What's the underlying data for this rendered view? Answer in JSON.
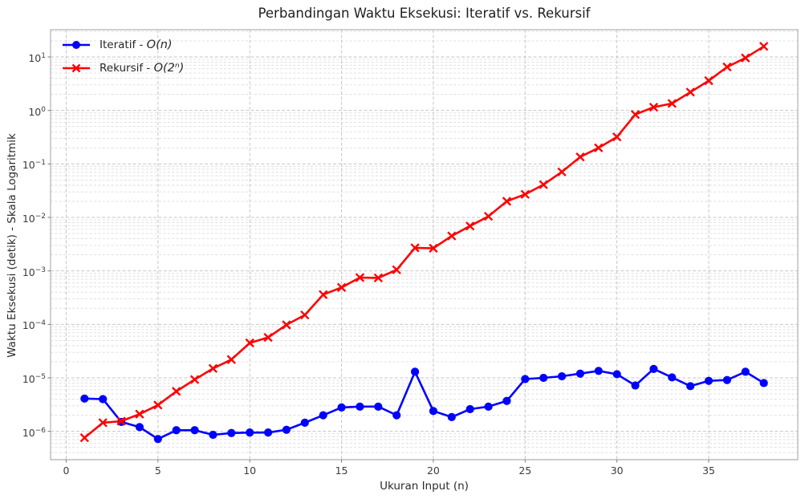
{
  "chart_data": {
    "type": "line",
    "title": "Perbandingan Waktu Eksekusi: Iteratif vs. Rekursif",
    "xlabel": "Ukuran Input (n)",
    "ylabel": "Waktu Eksekusi (detik) - Skala Logaritmik",
    "y_scale": "log",
    "grid": "major+minor, dashed, both axes",
    "legend_position": "upper-left, frameless",
    "x": [
      1,
      2,
      3,
      4,
      5,
      6,
      7,
      8,
      9,
      10,
      11,
      12,
      13,
      14,
      15,
      16,
      17,
      18,
      19,
      20,
      21,
      22,
      23,
      24,
      25,
      26,
      27,
      28,
      29,
      30,
      31,
      32,
      33,
      34,
      35,
      36,
      37,
      38
    ],
    "series": [
      {
        "label_prefix": "Iteratif - ",
        "label_math": "O(n)",
        "color": "#0000ff",
        "marker": "circle",
        "values": [
          4.1e-06,
          4e-06,
          1.5e-06,
          1.2e-06,
          7.2e-07,
          1.05e-06,
          1.05e-06,
          8.6e-07,
          9.3e-07,
          9.5e-07,
          9.5e-07,
          1.07e-06,
          1.45e-06,
          2e-06,
          2.8e-06,
          2.9e-06,
          2.9e-06,
          2e-06,
          1.3e-05,
          2.4e-06,
          1.85e-06,
          2.6e-06,
          2.9e-06,
          3.7e-06,
          9.5e-06,
          1e-05,
          1.07e-05,
          1.2e-05,
          1.35e-05,
          1.17e-05,
          7.2e-06,
          1.47e-05,
          1.02e-05,
          7e-06,
          8.8e-06,
          9.1e-06,
          1.3e-05,
          8e-06
        ]
      },
      {
        "label_prefix": "Rekursif - ",
        "label_math": "O(2ⁿ)",
        "color": "#ff0000",
        "marker": "x",
        "values": [
          7.6e-07,
          1.45e-06,
          1.55e-06,
          2.1e-06,
          3.1e-06,
          5.6e-06,
          9.3e-06,
          1.5e-05,
          2.2e-05,
          4.5e-05,
          5.7e-05,
          9.8e-05,
          0.00015,
          0.00036,
          0.00049,
          0.00075,
          0.00074,
          0.00105,
          0.0027,
          0.00265,
          0.0045,
          0.0069,
          0.0105,
          0.02,
          0.027,
          0.041,
          0.071,
          0.135,
          0.2,
          0.32,
          0.84,
          1.15,
          1.35,
          2.2,
          3.6,
          6.5,
          9.6,
          15.8
        ],
        "note": ""
      }
    ],
    "x_ticks": [
      "0",
      "5",
      "10",
      "15",
      "20",
      "25",
      "30",
      "35"
    ],
    "x_tick_values": [
      0,
      5,
      10,
      15,
      20,
      25,
      30,
      35
    ],
    "y_tick_base": "10",
    "y_tick_exponents": [
      "1",
      "0",
      "−1",
      "−2",
      "−3",
      "−4",
      "−5",
      "−6"
    ],
    "xlim": [
      -0.85,
      39.85
    ],
    "ylim_log10": [
      -6.53,
      1.51
    ],
    "style": {
      "background": "#ffffff",
      "grid_major_color": "#c6c6c6",
      "grid_minor_color": "#dcdcdc",
      "spine_color": "#b0b0b0",
      "tick_color": "#777777",
      "text_color": "#262626"
    }
  }
}
